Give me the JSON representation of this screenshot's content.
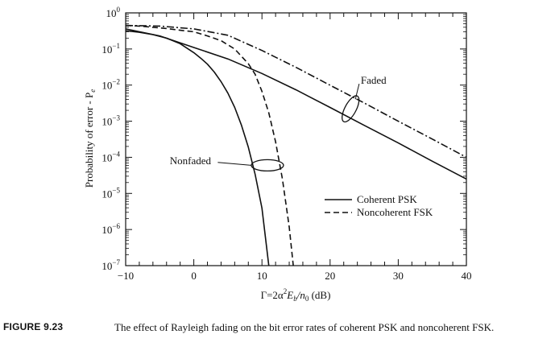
{
  "chart_data": {
    "type": "line",
    "title": "",
    "xlabel_parts": {
      "pre": "Γ=2α",
      "sup1": "2",
      "mid": "E",
      "sub1": "b",
      "mid2": "/n",
      "sub2": "0",
      "post": " (dB)"
    },
    "ylabel_parts": {
      "pre": "Probability of error - P",
      "sub": "e"
    },
    "xlim": [
      -10,
      40
    ],
    "ylim": [
      1e-07,
      1
    ],
    "yscale": "log",
    "grid": false,
    "xticks": [
      -10,
      0,
      10,
      20,
      30,
      40
    ],
    "xtick_labels": [
      "−10",
      "0",
      "10",
      "20",
      "30",
      "40"
    ],
    "yticks": [
      {
        "value": 1,
        "base": "10",
        "exp": "0"
      },
      {
        "value": 0.1,
        "base": "10",
        "exp": "−1"
      },
      {
        "value": 0.01,
        "base": "10",
        "exp": "−2"
      },
      {
        "value": 0.001,
        "base": "10",
        "exp": "−3"
      },
      {
        "value": 0.0001,
        "base": "10",
        "exp": "−4"
      },
      {
        "value": 1e-05,
        "base": "10",
        "exp": "−5"
      },
      {
        "value": 1e-06,
        "base": "10",
        "exp": "−6"
      },
      {
        "value": 1e-07,
        "base": "10",
        "exp": "−7"
      }
    ],
    "legend_position": "lower-right",
    "legend": [
      {
        "label": "Coherent PSK",
        "style": "solid"
      },
      {
        "label": "Noncoherent FSK",
        "style": "dashed"
      }
    ],
    "series": [
      {
        "id": "psk-nonfaded",
        "style": "solid",
        "x": [
          -10,
          -8,
          -6,
          -4,
          -2,
          0,
          1,
          2,
          3,
          4,
          5,
          6,
          7,
          8,
          9,
          10,
          11
        ],
        "y": [
          0.32,
          0.29,
          0.25,
          0.2,
          0.14,
          0.079,
          0.056,
          0.038,
          0.023,
          0.0125,
          0.006,
          0.0024,
          0.00077,
          0.00019,
          3.4e-05,
          3.9e-06,
          1e-07
        ]
      },
      {
        "id": "fsk-nonfaded",
        "style": "dashed",
        "x": [
          -10,
          -8,
          -6,
          -4,
          -2,
          0,
          2,
          4,
          6,
          8,
          9,
          10,
          11,
          12,
          13,
          14,
          14.6
        ],
        "y": [
          0.45,
          0.43,
          0.4,
          0.37,
          0.33,
          0.3,
          0.23,
          0.17,
          0.1,
          0.039,
          0.02,
          0.0067,
          0.0017,
          0.00027,
          2.5e-05,
          1.2e-06,
          1e-07
        ]
      },
      {
        "id": "psk-faded",
        "style": "solid",
        "x": [
          -10,
          -5,
          0,
          5,
          10,
          15,
          20,
          25,
          30,
          35,
          40
        ],
        "y": [
          0.36,
          0.23,
          0.11,
          0.053,
          0.021,
          0.0074,
          0.0024,
          0.00077,
          0.00025,
          7.8e-05,
          2.5e-05
        ]
      },
      {
        "id": "fsk-faded",
        "style": "dashdot",
        "x": [
          -10,
          -5,
          0,
          5,
          10,
          15,
          20,
          25,
          30,
          35,
          40
        ],
        "y": [
          0.45,
          0.43,
          0.36,
          0.24,
          0.091,
          0.031,
          0.0099,
          0.0032,
          0.001,
          0.00032,
          0.0001
        ]
      }
    ],
    "annotations": [
      {
        "id": "faded",
        "text": "Faded",
        "label_at": [
          24.5,
          0.012
        ],
        "ellipse_center": [
          23,
          0.0022
        ]
      },
      {
        "id": "nonfaded",
        "text": "Nonfaded",
        "label_at": [
          -0.5,
          8e-05
        ],
        "ellipse_center": [
          10.8,
          6e-05
        ]
      }
    ]
  },
  "caption": {
    "figure_number": "FIGURE 9.23",
    "text": "The effect of Rayleigh fading on the bit error rates of coherent PSK and noncoherent FSK."
  }
}
